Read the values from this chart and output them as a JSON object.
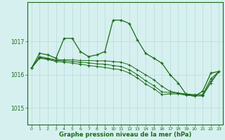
{
  "title": "Graphe pression niveau de la mer (hPa)",
  "x_labels": [
    "0",
    "1",
    "2",
    "3",
    "4",
    "5",
    "6",
    "7",
    "8",
    "9",
    "10",
    "11",
    "12",
    "13",
    "14",
    "15",
    "16",
    "17",
    "18",
    "19",
    "20",
    "21",
    "22",
    "23"
  ],
  "ylim": [
    1014.5,
    1018.2
  ],
  "yticks": [
    1015,
    1016,
    1017
  ],
  "background_color": "#d6f0ef",
  "grid_color": "#b8dada",
  "line_color": "#1a6b1a",
  "series": [
    [
      1016.2,
      1016.65,
      1016.6,
      1016.5,
      1017.1,
      1017.1,
      1016.7,
      1016.55,
      1016.6,
      1016.7,
      1017.65,
      1017.65,
      1017.55,
      1017.05,
      1016.65,
      1016.5,
      1016.35,
      1016.0,
      1015.75,
      1015.4,
      1015.35,
      1015.5,
      1016.05,
      1016.1
    ],
    [
      1016.2,
      1016.55,
      1016.5,
      1016.45,
      1016.45,
      1016.45,
      1016.43,
      1016.43,
      1016.42,
      1016.42,
      1016.4,
      1016.38,
      1016.3,
      1016.15,
      1016.0,
      1015.85,
      1015.65,
      1015.5,
      1015.45,
      1015.42,
      1015.4,
      1015.4,
      1015.88,
      1016.1
    ],
    [
      1016.2,
      1016.52,
      1016.48,
      1016.43,
      1016.42,
      1016.4,
      1016.38,
      1016.36,
      1016.33,
      1016.32,
      1016.28,
      1016.25,
      1016.15,
      1016.0,
      1015.82,
      1015.67,
      1015.48,
      1015.46,
      1015.44,
      1015.4,
      1015.38,
      1015.38,
      1015.8,
      1016.1
    ],
    [
      1016.2,
      1016.5,
      1016.46,
      1016.4,
      1016.38,
      1016.35,
      1016.32,
      1016.28,
      1016.25,
      1016.22,
      1016.18,
      1016.15,
      1016.05,
      1015.9,
      1015.72,
      1015.58,
      1015.4,
      1015.42,
      1015.42,
      1015.38,
      1015.36,
      1015.36,
      1015.75,
      1016.1
    ]
  ],
  "markers": [
    "+",
    "+",
    "+",
    "+"
  ]
}
